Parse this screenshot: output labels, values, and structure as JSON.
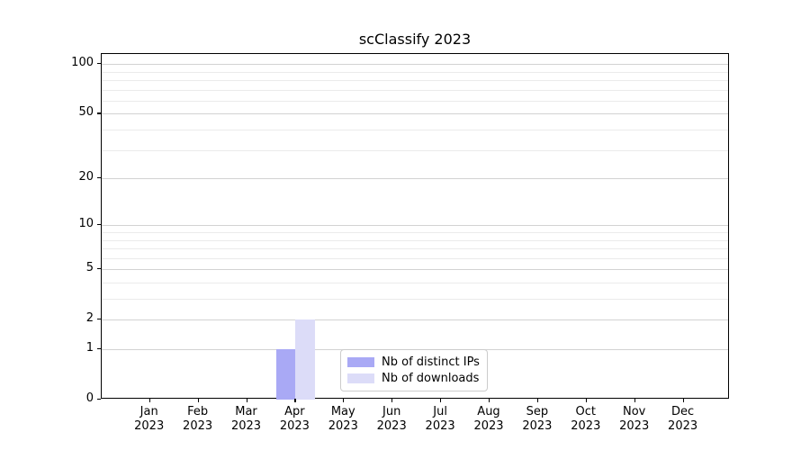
{
  "chart_data": {
    "type": "bar",
    "title": "scClassify 2023",
    "categories": [
      "Jan",
      "Feb",
      "Mar",
      "Apr",
      "May",
      "Jun",
      "Jul",
      "Aug",
      "Sep",
      "Oct",
      "Nov",
      "Dec"
    ],
    "x_sublabel": "2023",
    "series": [
      {
        "name": "Nb of distinct IPs",
        "color": "#a9a9f5",
        "values": [
          0,
          0,
          0,
          1,
          0,
          0,
          0,
          0,
          0,
          0,
          0,
          0
        ]
      },
      {
        "name": "Nb of downloads",
        "color": "#dcdcf8",
        "values": [
          0,
          0,
          0,
          2,
          0,
          0,
          0,
          0,
          0,
          0,
          0,
          0
        ]
      }
    ],
    "y_scale": "log1p",
    "y_ticks": [
      0,
      1,
      2,
      5,
      10,
      20,
      50,
      100
    ],
    "y_minor_gridlines": [
      3,
      4,
      6,
      7,
      8,
      9,
      30,
      40,
      60,
      70,
      80,
      90
    ],
    "ylim": [
      0,
      115
    ],
    "grid": "horizontal",
    "legend_position": "lower center",
    "colors": {
      "major_grid": "#d2d2d2",
      "minor_grid": "#ebebeb",
      "axis": "#000000",
      "legend_border": "#cccccc",
      "background": "#ffffff"
    }
  }
}
